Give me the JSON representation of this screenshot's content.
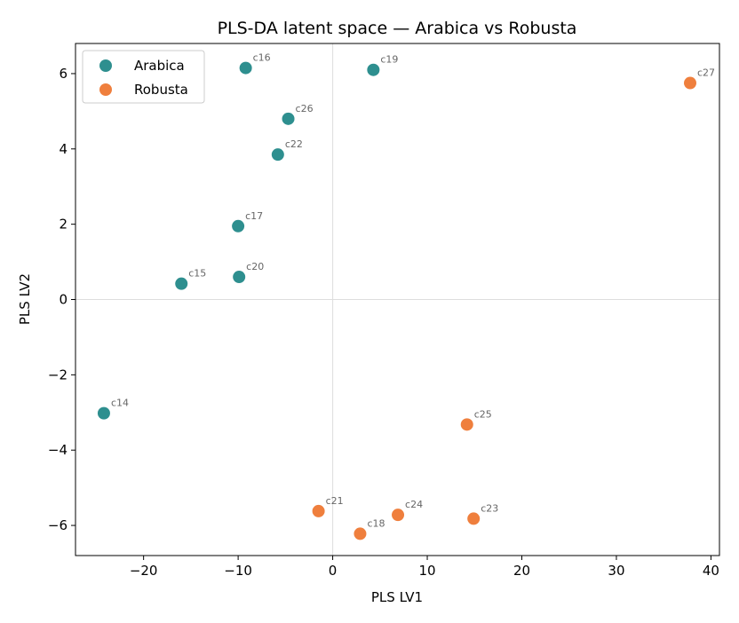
{
  "chart_data": {
    "type": "scatter",
    "title": "PLS-DA latent space — Arabica vs Robusta",
    "xlabel": "PLS LV1",
    "ylabel": "PLS LV2",
    "xlim": [
      -27.2,
      40.9
    ],
    "ylim": [
      -6.8,
      6.8
    ],
    "xticks": [
      -20,
      -10,
      0,
      10,
      20,
      30,
      40
    ],
    "yticks": [
      -6,
      -4,
      -2,
      0,
      2,
      4,
      6
    ],
    "xtick_labels": [
      "−20",
      "−10",
      "0",
      "10",
      "20",
      "30",
      "40"
    ],
    "ytick_labels": [
      "−6",
      "−4",
      "−2",
      "0",
      "2",
      "4",
      "6"
    ],
    "zero_lines": true,
    "legend_position": "top-left",
    "series": [
      {
        "name": "Arabica",
        "color": "#2e8f8f",
        "points": [
          {
            "label": "c16",
            "x": -9.2,
            "y": 6.15
          },
          {
            "label": "c19",
            "x": 4.3,
            "y": 6.1
          },
          {
            "label": "c26",
            "x": -4.7,
            "y": 4.8
          },
          {
            "label": "c22",
            "x": -5.8,
            "y": 3.85
          },
          {
            "label": "c17",
            "x": -10.0,
            "y": 1.95
          },
          {
            "label": "c20",
            "x": -9.9,
            "y": 0.6
          },
          {
            "label": "c15",
            "x": -16.0,
            "y": 0.42
          },
          {
            "label": "c14",
            "x": -24.2,
            "y": -3.02
          }
        ]
      },
      {
        "name": "Robusta",
        "color": "#ef7f3d",
        "points": [
          {
            "label": "c27",
            "x": 37.8,
            "y": 5.75
          },
          {
            "label": "c25",
            "x": 14.2,
            "y": -3.32
          },
          {
            "label": "c21",
            "x": -1.5,
            "y": -5.62
          },
          {
            "label": "c24",
            "x": 6.9,
            "y": -5.72
          },
          {
            "label": "c23",
            "x": 14.9,
            "y": -5.82
          },
          {
            "label": "c18",
            "x": 2.9,
            "y": -6.22
          }
        ]
      }
    ]
  }
}
